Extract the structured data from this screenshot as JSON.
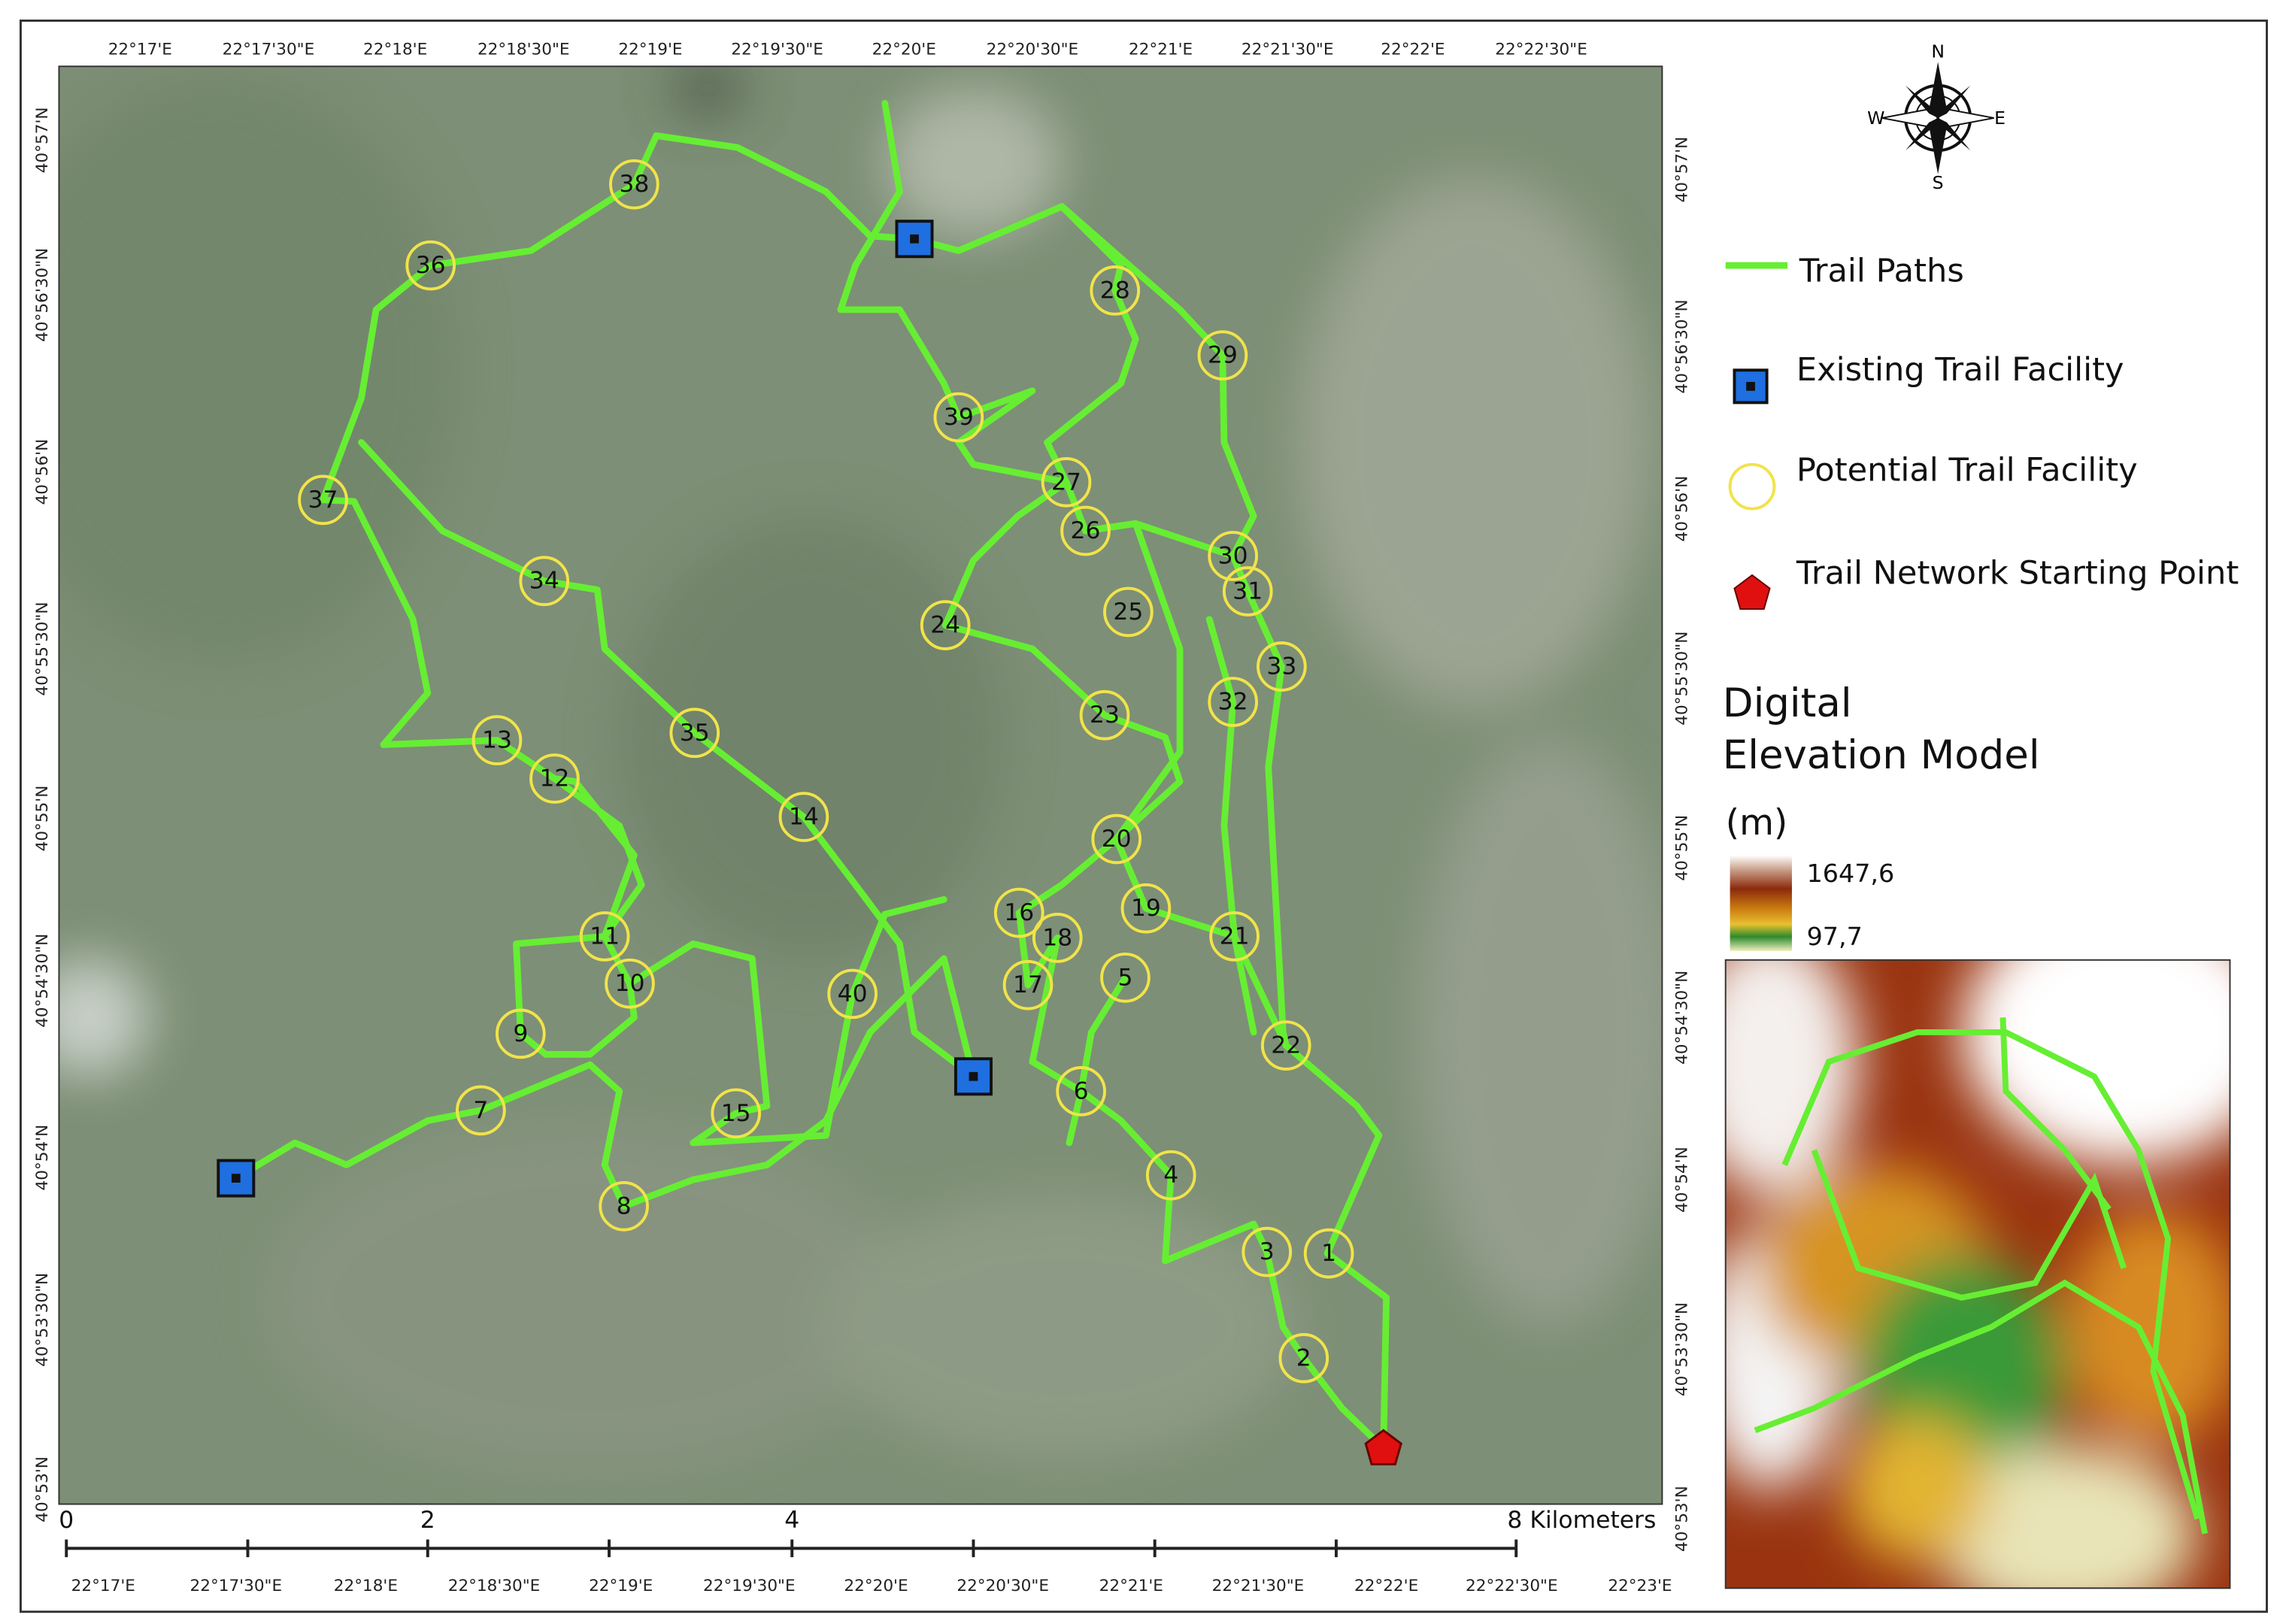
{
  "map": {
    "top_axis": [
      "22°17'E",
      "22°17'30\"E",
      "22°18'E",
      "22°18'30\"E",
      "22°19'E",
      "22°19'30\"E",
      "22°20'E",
      "22°20'30\"E",
      "22°21'E",
      "22°21'30\"E",
      "22°22'E",
      "22°22'30\"E"
    ],
    "bottom_axis": [
      "22°17'E",
      "22°17'30\"E",
      "22°18'E",
      "22°18'30\"E",
      "22°19'E",
      "22°19'30\"E",
      "22°20'E",
      "22°20'30\"E",
      "22°21'E",
      "22°21'30\"E",
      "22°22'E",
      "22°22'30\"E",
      "22°23'E"
    ],
    "left_axis": [
      "40°57'N",
      "40°56'30\"N",
      "40°56'N",
      "40°55'30\"N",
      "40°55'N",
      "40°54'30\"N",
      "40°54'N",
      "40°53'30\"N",
      "40°53'N"
    ],
    "right_axis": [
      "40°57'N",
      "40°56'30\"N",
      "40°56'N",
      "40°55'30\"N",
      "40°55'N",
      "40°54'30\"N",
      "40°54'N",
      "40°53'30\"N",
      "40°53'N"
    ],
    "compass": {
      "north": "N",
      "east": "E",
      "south": "S",
      "west": "W"
    },
    "facilities": [
      "1",
      "2",
      "3",
      "4",
      "5",
      "6",
      "7",
      "8",
      "9",
      "10",
      "11",
      "12",
      "13",
      "14",
      "15",
      "16",
      "17",
      "18",
      "19",
      "20",
      "21",
      "22",
      "23",
      "24",
      "25",
      "26",
      "27",
      "28",
      "29",
      "30",
      "31",
      "32",
      "33",
      "34",
      "35",
      "36",
      "37",
      "38",
      "39",
      "40"
    ],
    "scale_bar": [
      "0",
      "2",
      "4",
      "8 Kilometers"
    ]
  },
  "legend": {
    "items": [
      "Trail Paths",
      "Existing Trail Facility",
      "Potential Trail Facility",
      "Trail Network Starting Point"
    ],
    "dem_title": "Digital Elevation Model",
    "dem_unit": "(m)",
    "dem_max": "1647,6",
    "dem_min": "97,7"
  }
}
